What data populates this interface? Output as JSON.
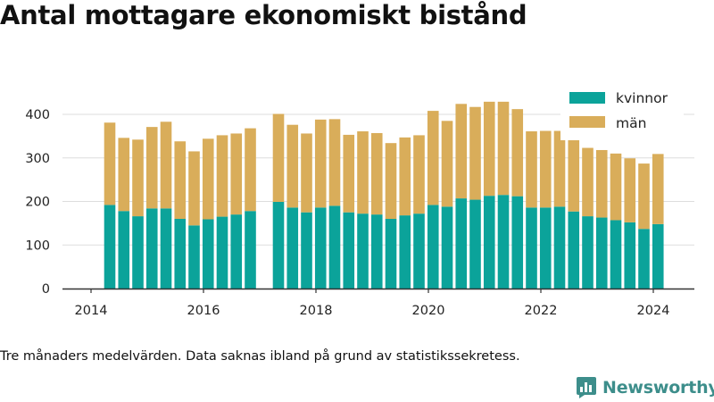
{
  "title": "Antal mottagare ekonomiskt bistånd",
  "footnote": "Tre månaders medelvärden. Data saknas ibland på grund av statistikssekretess.",
  "brand": "Newsworthy",
  "colors": {
    "kvinnor": "#0ba39a",
    "man": "#d9ad5a",
    "grid": "#dddddd",
    "axis": "#333333",
    "brand": "#3d8e8b"
  },
  "chart_data": {
    "type": "bar",
    "stacked": true,
    "x_unit": "date",
    "xticks": [
      "2014",
      "2016",
      "2018",
      "2020",
      "2022",
      "2024"
    ],
    "yticks": [
      0,
      100,
      200,
      300,
      400
    ],
    "ylim": [
      0,
      470
    ],
    "grid": true,
    "legend": "top-right",
    "x": [
      "2014-05",
      "2014-08",
      "2014-11",
      "2015-02",
      "2015-05",
      "2015-08",
      "2015-11",
      "2016-02",
      "2016-05",
      "2016-08",
      "2016-11",
      "2017-05",
      "2017-08",
      "2017-11",
      "2018-02",
      "2018-05",
      "2018-08",
      "2018-11",
      "2019-02",
      "2019-05",
      "2019-08",
      "2019-11",
      "2020-02",
      "2020-05",
      "2020-08",
      "2020-11",
      "2021-02",
      "2021-05",
      "2021-08",
      "2021-11",
      "2022-02",
      "2022-05",
      "2022-08",
      "2022-11",
      "2023-02",
      "2023-05",
      "2023-08",
      "2023-11",
      "2024-02"
    ],
    "series": [
      {
        "name": "kvinnor",
        "values": [
          192,
          178,
          166,
          184,
          184,
          160,
          145,
          159,
          165,
          170,
          178,
          199,
          186,
          175,
          186,
          190,
          175,
          172,
          170,
          160,
          168,
          172,
          192,
          188,
          207,
          204,
          213,
          215,
          212,
          186,
          186,
          188,
          177,
          166,
          163,
          157,
          152,
          137,
          148
        ]
      },
      {
        "name": "män",
        "values": [
          189,
          168,
          176,
          187,
          199,
          178,
          170,
          185,
          187,
          186,
          190,
          202,
          190,
          181,
          202,
          199,
          178,
          189,
          187,
          174,
          179,
          180,
          216,
          197,
          217,
          213,
          216,
          214,
          200,
          175,
          176,
          174,
          168,
          157,
          155,
          153,
          147,
          150,
          161
        ]
      }
    ]
  }
}
